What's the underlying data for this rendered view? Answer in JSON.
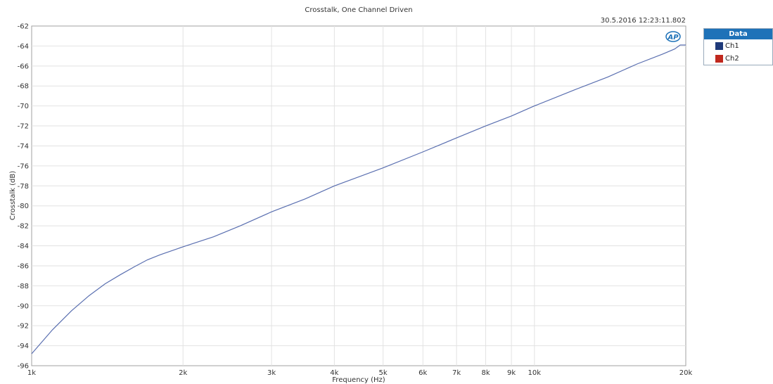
{
  "timestamp": "30.5.2016 12:23:11.802",
  "logo_text": "AP",
  "legend": {
    "header": "Data"
  },
  "chart_data": {
    "type": "line",
    "title": "Crosstalk, One Channel Driven",
    "xlabel": "Frequency (Hz)",
    "ylabel": "Crosstalk (dB)",
    "xscale": "log",
    "xlim": [
      1000,
      20000
    ],
    "ylim": [
      -96,
      -62
    ],
    "grid": true,
    "legend_position": "right-top",
    "x_ticks": [
      {
        "value": 1000,
        "label": "1k"
      },
      {
        "value": 2000,
        "label": "2k"
      },
      {
        "value": 3000,
        "label": "3k"
      },
      {
        "value": 4000,
        "label": "4k"
      },
      {
        "value": 5000,
        "label": "5k"
      },
      {
        "value": 6000,
        "label": "6k"
      },
      {
        "value": 7000,
        "label": "7k"
      },
      {
        "value": 8000,
        "label": "8k"
      },
      {
        "value": 9000,
        "label": "9k"
      },
      {
        "value": 10000,
        "label": "10k"
      },
      {
        "value": 20000,
        "label": "20k"
      }
    ],
    "y_ticks": [
      -62,
      -64,
      -66,
      -68,
      -70,
      -72,
      -74,
      -76,
      -78,
      -80,
      -82,
      -84,
      -86,
      -88,
      -90,
      -92,
      -94,
      -96
    ],
    "series": [
      {
        "name": "Ch1",
        "color": "#1f3a7a",
        "x": [
          1000,
          1100,
          1200,
          1300,
          1400,
          1500,
          1600,
          1700,
          1800,
          2000,
          2300,
          2600,
          3000,
          3500,
          4000,
          5000,
          6000,
          7000,
          8000,
          9000,
          10000,
          12000,
          14000,
          16000,
          18000,
          19000,
          19500,
          20000
        ],
        "y": [
          -94.8,
          -92.4,
          -90.5,
          -89.0,
          -87.8,
          -86.9,
          -86.1,
          -85.4,
          -84.9,
          -84.1,
          -83.1,
          -82.0,
          -80.6,
          -79.3,
          -78.0,
          -76.2,
          -74.6,
          -73.2,
          -72.0,
          -71.0,
          -70.0,
          -68.4,
          -67.1,
          -65.8,
          -64.8,
          -64.3,
          -63.9,
          -63.9
        ]
      },
      {
        "name": "Ch2",
        "color": "#c0281e",
        "x": [],
        "y": []
      }
    ]
  }
}
